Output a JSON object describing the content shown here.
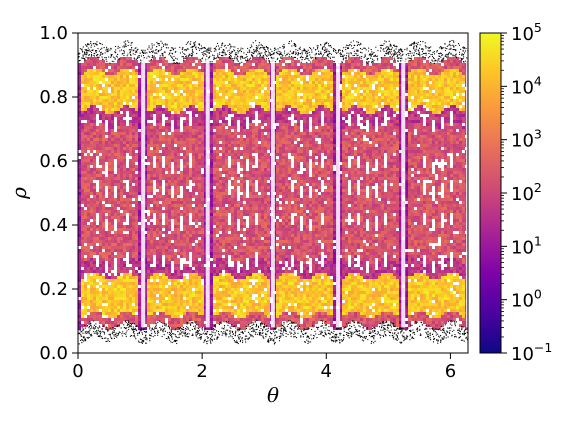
{
  "chart_data": {
    "type": "heatmap",
    "title": "",
    "xlabel": "θ",
    "ylabel": "ρ",
    "xlim": [
      0,
      6.2832
    ],
    "ylim": [
      0,
      1
    ],
    "x_ticks": [
      {
        "value": 0,
        "label": "0"
      },
      {
        "value": 2,
        "label": "2"
      },
      {
        "value": 4,
        "label": "4"
      },
      {
        "value": 6,
        "label": "6"
      }
    ],
    "y_ticks": [
      {
        "value": 0.0,
        "label": "0.0"
      },
      {
        "value": 0.2,
        "label": "0.2"
      },
      {
        "value": 0.4,
        "label": "0.4"
      },
      {
        "value": 0.6,
        "label": "0.6"
      },
      {
        "value": 0.8,
        "label": "0.8"
      },
      {
        "value": 1.0,
        "label": "1.0"
      }
    ],
    "colorbar": {
      "scale": "log",
      "colormap": "plasma",
      "range": [
        0.1,
        100000
      ],
      "ticks": [
        {
          "value": 0.1,
          "base": "10",
          "exp": "−1"
        },
        {
          "value": 1,
          "base": "10",
          "exp": "0"
        },
        {
          "value": 10,
          "base": "10",
          "exp": "1"
        },
        {
          "value": 100,
          "base": "10",
          "exp": "2"
        },
        {
          "value": 1000,
          "base": "10",
          "exp": "3"
        },
        {
          "value": 10000,
          "base": "10",
          "exp": "4"
        },
        {
          "value": 100000,
          "base": "10",
          "exp": "5"
        }
      ]
    },
    "structure": {
      "island_count_around_theta": 6,
      "island_centers_theta": [
        0.52,
        1.57,
        2.62,
        3.67,
        4.71,
        5.76
      ],
      "separatrix_theta": [
        1.05,
        2.09,
        3.14,
        4.19,
        5.24,
        6.28
      ],
      "high_density_rho_bands": [
        [
          0.12,
          0.24
        ],
        [
          0.76,
          0.88
        ]
      ],
      "empty_outer_region_rho": [
        [
          0.0,
          0.08
        ],
        [
          0.92,
          1.0
        ]
      ],
      "island_chain_rho": [
        0.28,
        0.41,
        0.51,
        0.59,
        0.72
      ]
    }
  }
}
